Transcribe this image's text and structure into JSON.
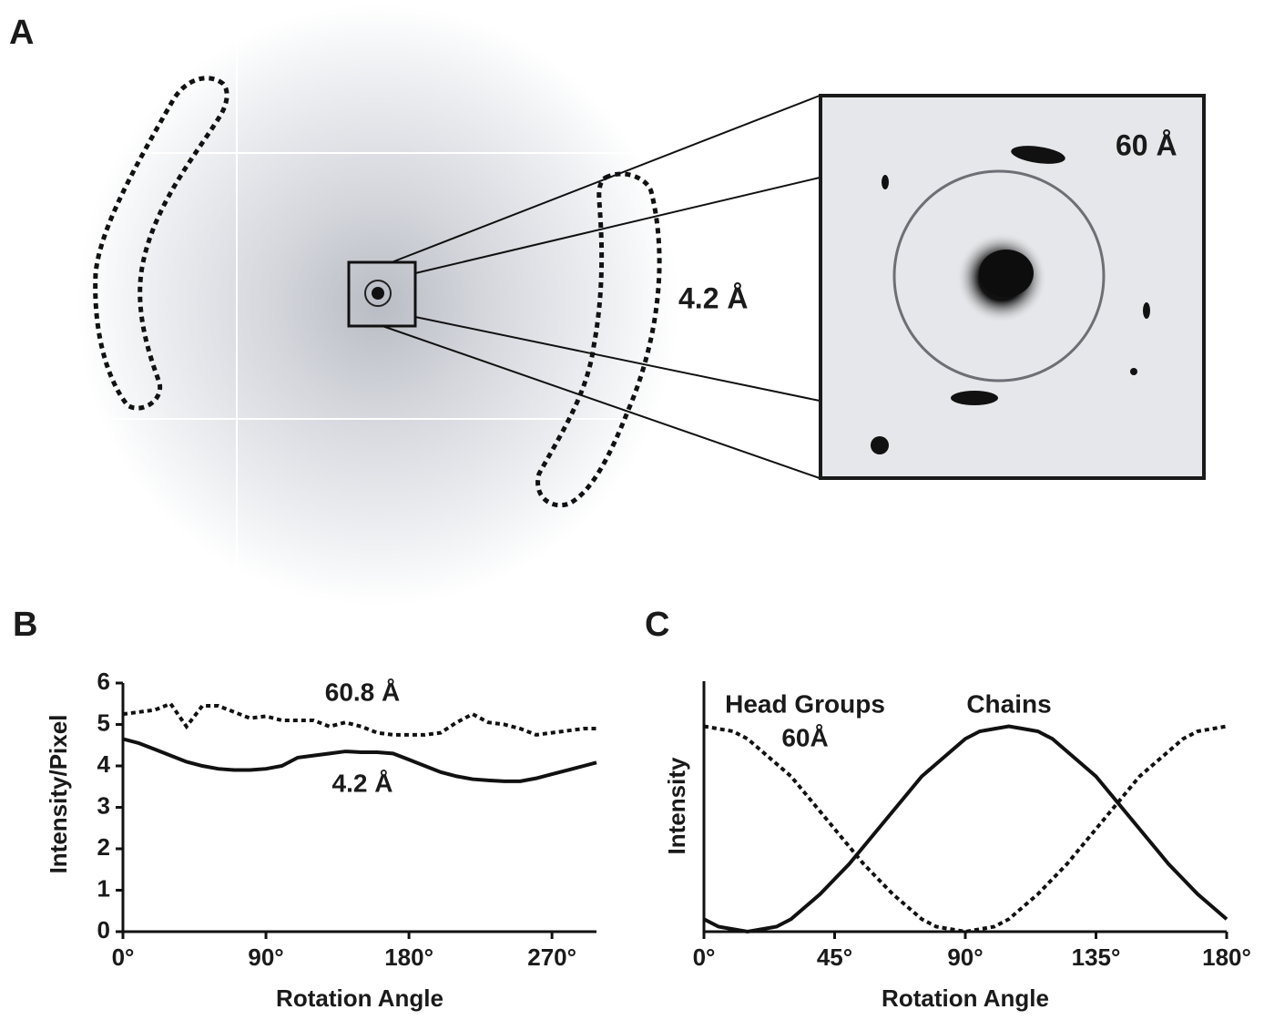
{
  "panel_a": {
    "label": "A",
    "ring_label": "4.2 Å",
    "inset_label": "60 Å"
  },
  "chart_data": [
    {
      "type": "line",
      "panel_label": "B",
      "x_label": "Rotation Angle",
      "y_label": "Intensity/Pixel",
      "x": [
        0,
        10,
        20,
        30,
        40,
        50,
        60,
        70,
        80,
        90,
        100,
        110,
        120,
        130,
        140,
        150,
        160,
        170,
        180,
        190,
        200,
        210,
        220,
        230,
        240,
        250,
        260,
        270,
        280,
        290,
        298
      ],
      "xlim": [
        0,
        298
      ],
      "ylim": [
        0,
        6
      ],
      "xticks": [
        {
          "value": 0,
          "label": "0°"
        },
        {
          "value": 90,
          "label": "90°"
        },
        {
          "value": 180,
          "label": "180°"
        },
        {
          "value": 270,
          "label": "270°"
        }
      ],
      "yticks": [
        0,
        1,
        2,
        3,
        4,
        5,
        6
      ],
      "series": [
        {
          "name": "60.8 Å",
          "color": "#111111",
          "line_style": "dotted",
          "values": [
            5.25,
            5.3,
            5.35,
            5.5,
            4.95,
            5.45,
            5.45,
            5.3,
            5.15,
            5.2,
            5.1,
            5.1,
            5.1,
            4.95,
            5.05,
            4.95,
            4.8,
            4.75,
            4.75,
            4.75,
            4.8,
            5.05,
            5.25,
            5.05,
            5.0,
            4.9,
            4.75,
            4.8,
            4.85,
            4.9,
            4.9
          ]
        },
        {
          "name": "4.2 Å",
          "color": "#111111",
          "line_style": "solid",
          "values": [
            4.65,
            4.55,
            4.4,
            4.25,
            4.1,
            4.0,
            3.93,
            3.9,
            3.9,
            3.93,
            4.0,
            4.2,
            4.25,
            4.3,
            4.35,
            4.33,
            4.33,
            4.3,
            4.15,
            4.0,
            3.85,
            3.75,
            3.68,
            3.65,
            3.63,
            3.63,
            3.7,
            3.8,
            3.9,
            4.0,
            4.08
          ]
        }
      ]
    },
    {
      "type": "line",
      "panel_label": "C",
      "x_label": "Rotation Angle",
      "y_label": "Intensity",
      "x": [
        0,
        5,
        10,
        15,
        20,
        25,
        30,
        35,
        40,
        45,
        50,
        55,
        60,
        65,
        70,
        75,
        80,
        85,
        90,
        95,
        100,
        105,
        110,
        115,
        120,
        125,
        130,
        135,
        140,
        145,
        150,
        155,
        160,
        165,
        170,
        175,
        180
      ],
      "xlim": [
        0,
        180
      ],
      "ylim": [
        0,
        1
      ],
      "xticks": [
        {
          "value": 0,
          "label": "0°"
        },
        {
          "value": 45,
          "label": "45°"
        },
        {
          "value": 90,
          "label": "90°"
        },
        {
          "value": 135,
          "label": "135°"
        },
        {
          "value": 180,
          "label": "180°"
        }
      ],
      "yticks": [],
      "annotations": [
        "60Å"
      ],
      "series": [
        {
          "name": "Head Groups",
          "color": "#111111",
          "line_style": "dotted",
          "values": [
            0.82,
            0.81,
            0.8,
            0.77,
            0.72,
            0.67,
            0.62,
            0.55,
            0.48,
            0.41,
            0.34,
            0.27,
            0.21,
            0.15,
            0.1,
            0.05,
            0.02,
            0.01,
            0.0,
            0.01,
            0.02,
            0.05,
            0.1,
            0.15,
            0.21,
            0.27,
            0.34,
            0.41,
            0.48,
            0.55,
            0.62,
            0.67,
            0.72,
            0.77,
            0.8,
            0.81,
            0.82
          ]
        },
        {
          "name": "Chains",
          "color": "#111111",
          "line_style": "solid",
          "values": [
            0.05,
            0.02,
            0.01,
            0.0,
            0.01,
            0.02,
            0.05,
            0.1,
            0.15,
            0.21,
            0.27,
            0.34,
            0.41,
            0.48,
            0.55,
            0.62,
            0.67,
            0.72,
            0.77,
            0.8,
            0.81,
            0.82,
            0.81,
            0.8,
            0.77,
            0.72,
            0.67,
            0.62,
            0.55,
            0.48,
            0.41,
            0.34,
            0.27,
            0.21,
            0.15,
            0.1,
            0.05
          ]
        }
      ]
    }
  ]
}
